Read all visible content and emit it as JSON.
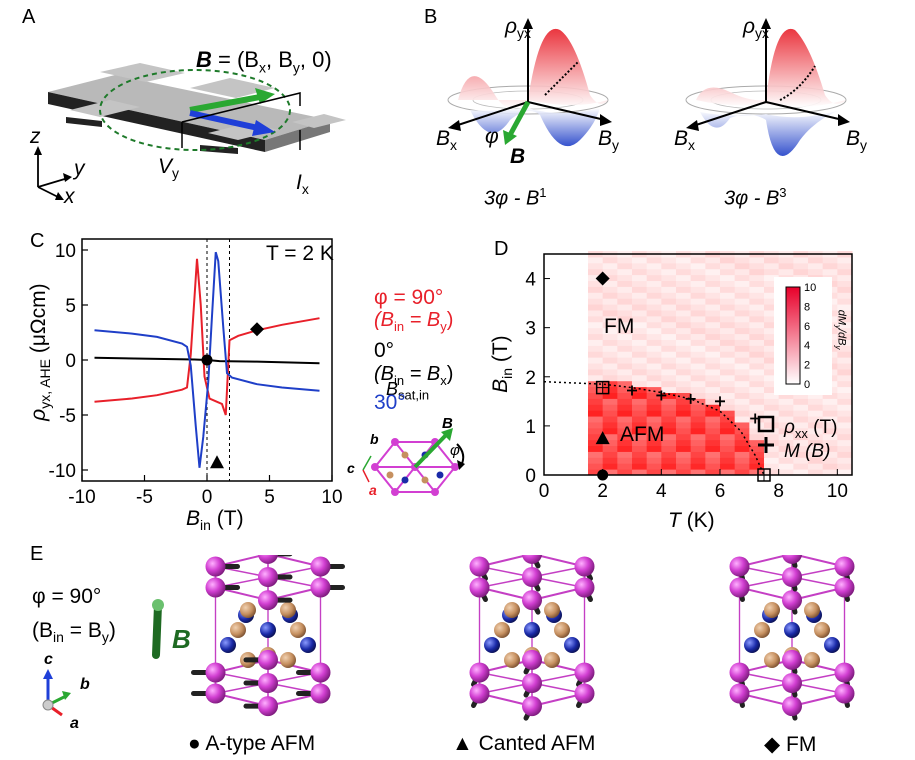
{
  "labels": {
    "A": "A",
    "B": "B",
    "C": "C",
    "D": "D",
    "E": "E"
  },
  "colors": {
    "red": "#e8202a",
    "blue": "#1f3fc8",
    "black": "#000000",
    "green": "#1e9a2a",
    "magenta": "#d23fd2",
    "brown": "#c69060",
    "darkblue": "#1a2aa8"
  },
  "panelA": {
    "field_eq_B": "B",
    "field_eq_rest": "= (B",
    "field_eq_x": "x",
    "field_eq_mid": ", B",
    "field_eq_y": "y",
    "field_eq_end": ", 0)",
    "axis_z": "z",
    "axis_y": "y",
    "axis_x": "x",
    "v_label": "V",
    "v_sub": "y",
    "i_label": "I",
    "i_sub": "x"
  },
  "panelB": {
    "left": {
      "rho": "ρ",
      "rho_sub": "yx",
      "bx": "B",
      "bx_sub": "x",
      "by": "B",
      "by_sub": "y",
      "phi": "φ",
      "B": "B",
      "caption": "3φ - B",
      "caption_sup": "1"
    },
    "right": {
      "rho": "ρ",
      "rho_sub": "yx",
      "bx": "B",
      "bx_sub": "x",
      "by": "B",
      "by_sub": "y",
      "caption": "3φ - B",
      "caption_sup": "3"
    }
  },
  "chart_data": [
    {
      "type": "line",
      "title": "",
      "annotation_T": "T = 2 K",
      "xlabel": "B",
      "xlabel_sub": "in",
      "xlabel_unit": " (T)",
      "ylabel": "ρ",
      "ylabel_sub": "yx, AHE",
      "ylabel_unit": " (μΩcm)",
      "xlim": [
        -10,
        10
      ],
      "ylim": [
        -11,
        11
      ],
      "xticks": [
        -10,
        -5,
        0,
        5,
        10
      ],
      "yticks": [
        -10,
        -5,
        0,
        5,
        10
      ],
      "bsat_label": "B",
      "bsat_sub": "sat,in",
      "legend": [
        {
          "text": "φ = 90°",
          "text2": "(B",
          "sub": "in",
          "text3": " = B",
          "sub2": "y",
          "text4": ")",
          "color": "#e8202a"
        },
        {
          "text": "0°",
          "text2": "(B",
          "sub": "in",
          "text3": " = B",
          "sub2": "x",
          "text4": ")",
          "color": "#000000"
        },
        {
          "text": "30°",
          "color": "#1f3fc8"
        }
      ],
      "series": [
        {
          "name": "φ = 90°",
          "color": "#e8202a",
          "x": [
            -9,
            -6,
            -4,
            -2,
            -1.6,
            -1.3,
            -0.8,
            -0.5,
            -0.2,
            0.2,
            0.8,
            1.2,
            1.5,
            1.8,
            2.5,
            4,
            6,
            9
          ],
          "y": [
            -3.8,
            -3.5,
            -3.2,
            -2.7,
            -2.5,
            0.5,
            9.2,
            5,
            -1.5,
            -3.5,
            -3.8,
            -4,
            -5,
            1.8,
            2.2,
            2.7,
            3.2,
            3.8
          ]
        },
        {
          "name": "0°",
          "color": "#000000",
          "x": [
            -9,
            -4,
            -1,
            0,
            1,
            4,
            9
          ],
          "y": [
            0.2,
            0.1,
            0.05,
            0,
            -0.1,
            -0.15,
            -0.3
          ]
        },
        {
          "name": "30°",
          "color": "#1f3fc8",
          "x": [
            -9,
            -6,
            -4,
            -2,
            -1.6,
            -1.3,
            -0.9,
            -0.6,
            -0.3,
            0.1,
            0.4,
            0.7,
            0.9,
            1.3,
            1.6,
            2,
            4,
            6,
            9
          ],
          "y": [
            2.7,
            2.4,
            2.1,
            1.5,
            1.2,
            -0.5,
            -6,
            -9.8,
            -7,
            -2,
            4,
            9.8,
            9,
            3,
            -1.2,
            -1.6,
            -2.2,
            -2.5,
            -2.8
          ]
        }
      ],
      "markers": [
        {
          "shape": "circle",
          "x": 0,
          "y": 0
        },
        {
          "shape": "triangle",
          "x": 0.8,
          "y": -9.3
        },
        {
          "shape": "diamond",
          "x": 4,
          "y": 2.8
        }
      ],
      "vlines": [
        0,
        1.8
      ]
    },
    {
      "type": "heatmap",
      "xlabel": "T",
      "xlabel_unit": " (K)",
      "ylabel": "B",
      "ylabel_sub": "in",
      "ylabel_unit": " (T)",
      "xlim": [
        0,
        10.5
      ],
      "ylim": [
        0,
        4.5
      ],
      "xticks": [
        0,
        2,
        4,
        6,
        8,
        10
      ],
      "yticks": [
        0,
        1,
        2,
        3,
        4
      ],
      "colorbar": {
        "ticks": [
          0,
          2,
          4,
          6,
          8,
          10
        ],
        "label": "dM",
        "label_sub": "y",
        "label_mid": "/dB",
        "label_sub2": "y"
      },
      "region_labels": [
        {
          "text": "FM",
          "x": 3.3,
          "y": 3.3
        },
        {
          "text": "AFM",
          "x": 3.6,
          "y": 0.85
        }
      ],
      "boundary": {
        "T": [
          0,
          2,
          3,
          4,
          5,
          6,
          6.7,
          7.2,
          7.5
        ],
        "B": [
          1.9,
          1.85,
          1.78,
          1.68,
          1.55,
          1.3,
          0.9,
          0.4,
          0
        ]
      },
      "squares": [
        {
          "T": 2,
          "B": 1.78
        },
        {
          "T": 7.5,
          "B": 0
        }
      ],
      "crosses": [
        {
          "T": 3,
          "B": 1.72
        },
        {
          "T": 4,
          "B": 1.62
        },
        {
          "T": 5,
          "B": 1.55
        },
        {
          "T": 6,
          "B": 1.5
        },
        {
          "T": 7.2,
          "B": 1.15
        }
      ],
      "markers": [
        {
          "shape": "diamond",
          "T": 2,
          "B": 4
        },
        {
          "shape": "triangle",
          "T": 2,
          "B": 0.75
        },
        {
          "shape": "circle",
          "T": 2,
          "B": 0
        }
      ],
      "legend": [
        {
          "shape": "square",
          "text": "ρ",
          "sub": "xx",
          "text2": " (T)"
        },
        {
          "shape": "cross",
          "text": "M (B)"
        }
      ]
    }
  ],
  "panelE": {
    "phi": "φ = 90°",
    "bin_open": "(B",
    "bin_sub": "in",
    "bin_mid": " = B",
    "bin_sub2": "y",
    "bin_close": ")",
    "B": "B",
    "axis_c": "c",
    "axis_b": "b",
    "axis_a": "a",
    "captions": [
      {
        "symbol": "●",
        "text": " A-type AFM"
      },
      {
        "symbol": "▲",
        "text": " Canted AFM"
      },
      {
        "symbol": "◆",
        "text": " FM"
      }
    ]
  },
  "inset": {
    "a": "a",
    "b": "b",
    "c": "c",
    "B": "B",
    "phi": "φ"
  }
}
